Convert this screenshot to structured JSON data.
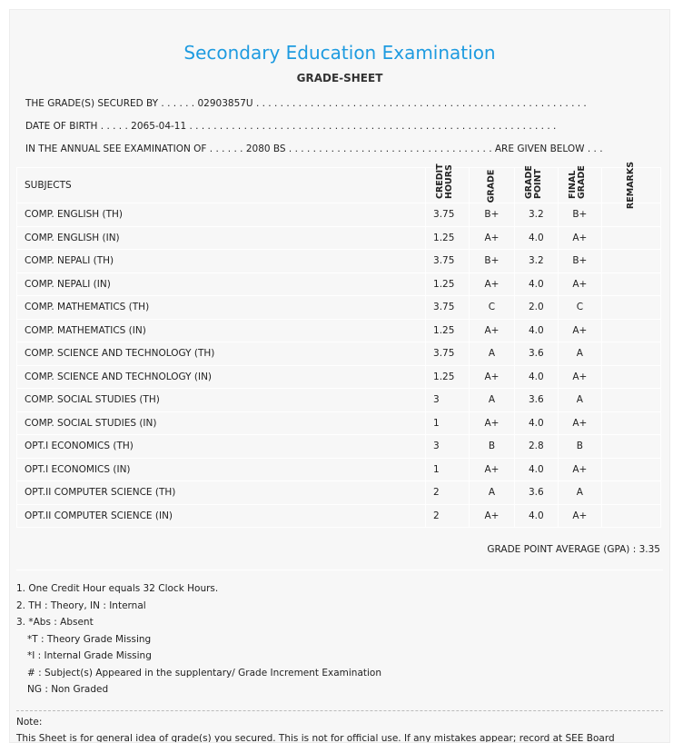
{
  "title": "Secondary Education Examination",
  "subtitle": "GRADE-SHEET",
  "info": {
    "line1": "THE GRADE(S) SECURED BY . . . . . . 02903857U . . . . . . . . . . . . . . . . . . . . . . . . . . . . . . . . . . . . . . . . . . . . . . . . . . . . . . .",
    "line2": "DATE OF BIRTH . . . . . 2065-04-11 . . . . . . . . . . . . . . . . . . . . . . . . . . . . . . . . . . . . . . . . . . . . . . . . . . . . . . . . . . . . .",
    "line3": "IN THE ANNUAL SEE EXAMINATION OF . . . . . . 2080 BS . . . . . . . . . . . . . . . . . . . . . . . . . . . . . . . . . . ARE GIVEN BELOW . . ."
  },
  "headers": {
    "subjects": "SUBJECTS",
    "credit": "CREDIT HOURS",
    "grade": "GRADE",
    "point": "GRADE POINT",
    "final": "FINAL GRADE",
    "remarks": "REMARKS"
  },
  "rows": [
    {
      "s": "COMP. ENGLISH (TH)",
      "ch": "3.75",
      "g": "B+",
      "gp": "3.2",
      "fg": "B+"
    },
    {
      "s": "COMP. ENGLISH (IN)",
      "ch": "1.25",
      "g": "A+",
      "gp": "4.0",
      "fg": "A+"
    },
    {
      "s": "COMP. NEPALI (TH)",
      "ch": "3.75",
      "g": "B+",
      "gp": "3.2",
      "fg": "B+"
    },
    {
      "s": "COMP. NEPALI (IN)",
      "ch": "1.25",
      "g": "A+",
      "gp": "4.0",
      "fg": "A+"
    },
    {
      "s": "COMP. MATHEMATICS (TH)",
      "ch": "3.75",
      "g": "C",
      "gp": "2.0",
      "fg": "C"
    },
    {
      "s": "COMP. MATHEMATICS (IN)",
      "ch": "1.25",
      "g": "A+",
      "gp": "4.0",
      "fg": "A+"
    },
    {
      "s": "COMP. SCIENCE AND TECHNOLOGY (TH)",
      "ch": "3.75",
      "g": "A",
      "gp": "3.6",
      "fg": "A"
    },
    {
      "s": "COMP. SCIENCE AND TECHNOLOGY (IN)",
      "ch": "1.25",
      "g": "A+",
      "gp": "4.0",
      "fg": "A+"
    },
    {
      "s": "COMP. SOCIAL STUDIES (TH)",
      "ch": "3",
      "g": "A",
      "gp": "3.6",
      "fg": "A"
    },
    {
      "s": "COMP. SOCIAL STUDIES (IN)",
      "ch": "1",
      "g": "A+",
      "gp": "4.0",
      "fg": "A+"
    },
    {
      "s": "OPT.I ECONOMICS (TH)",
      "ch": "3",
      "g": "B",
      "gp": "2.8",
      "fg": "B"
    },
    {
      "s": "OPT.I ECONOMICS (IN)",
      "ch": "1",
      "g": "A+",
      "gp": "4.0",
      "fg": "A+"
    },
    {
      "s": "OPT.II COMPUTER SCIENCE (TH)",
      "ch": "2",
      "g": "A",
      "gp": "3.6",
      "fg": "A"
    },
    {
      "s": "OPT.II COMPUTER SCIENCE (IN)",
      "ch": "2",
      "g": "A+",
      "gp": "4.0",
      "fg": "A+"
    }
  ],
  "gpa": "GRADE POINT AVERAGE (GPA) : 3.35",
  "notes": [
    "1. One Credit Hour equals 32 Clock Hours.",
    "2. TH : Theory, IN : Internal",
    "3. *Abs : Absent",
    "*T : Theory Grade Missing",
    "*I : Internal Grade Missing",
    "# : Subject(s) Appeared in the supplentary/ Grade Increment Examination",
    "NG : Non Graded"
  ],
  "note_label": "Note:",
  "note_text": "This Sheet is for general idea of grade(s) you secured. This is not for official use. If any mistakes appear; record at SEE Board"
}
